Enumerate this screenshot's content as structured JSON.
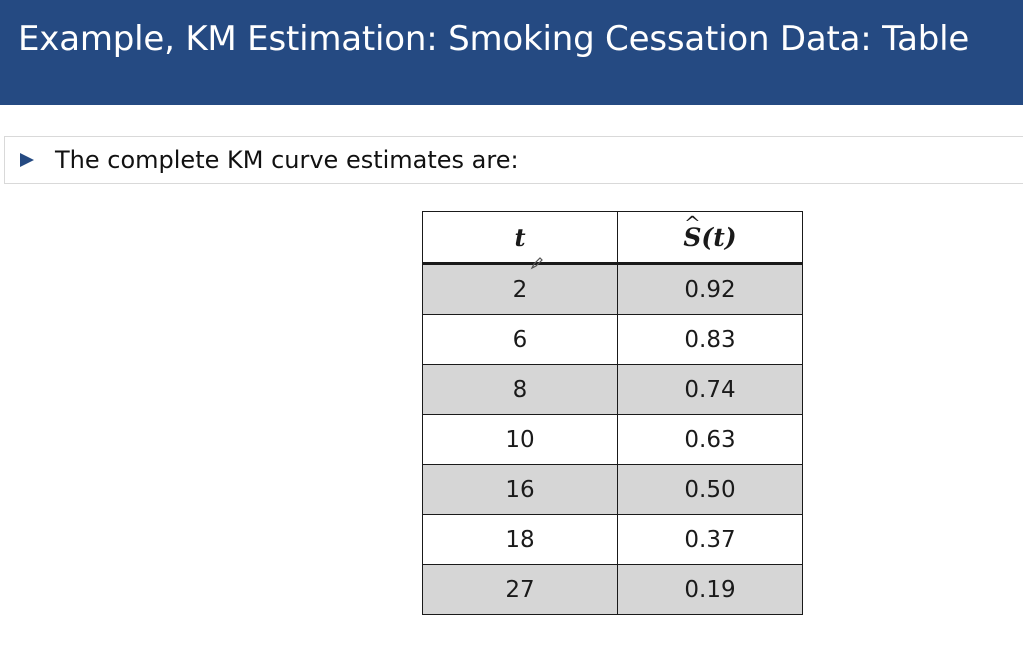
{
  "slide": {
    "title": "Example, KM Estimation: Smoking Cessation Data: Table",
    "colors": {
      "title_bar": "#254a82",
      "shaded_row": "#d6d6d6",
      "bullet": "#254a82"
    }
  },
  "bullet": {
    "text": "The complete KM curve estimates are:",
    "icon": "triangle-bullet-icon"
  },
  "table": {
    "headers": {
      "t": "t",
      "s_symbol": "S",
      "s_arg": "(t)"
    },
    "rows": [
      {
        "t": "2",
        "s": "0.92"
      },
      {
        "t": "6",
        "s": "0.83"
      },
      {
        "t": "8",
        "s": "0.74"
      },
      {
        "t": "10",
        "s": "0.63"
      },
      {
        "t": "16",
        "s": "0.50"
      },
      {
        "t": "18",
        "s": "0.37"
      },
      {
        "t": "27",
        "s": "0.19"
      }
    ]
  }
}
